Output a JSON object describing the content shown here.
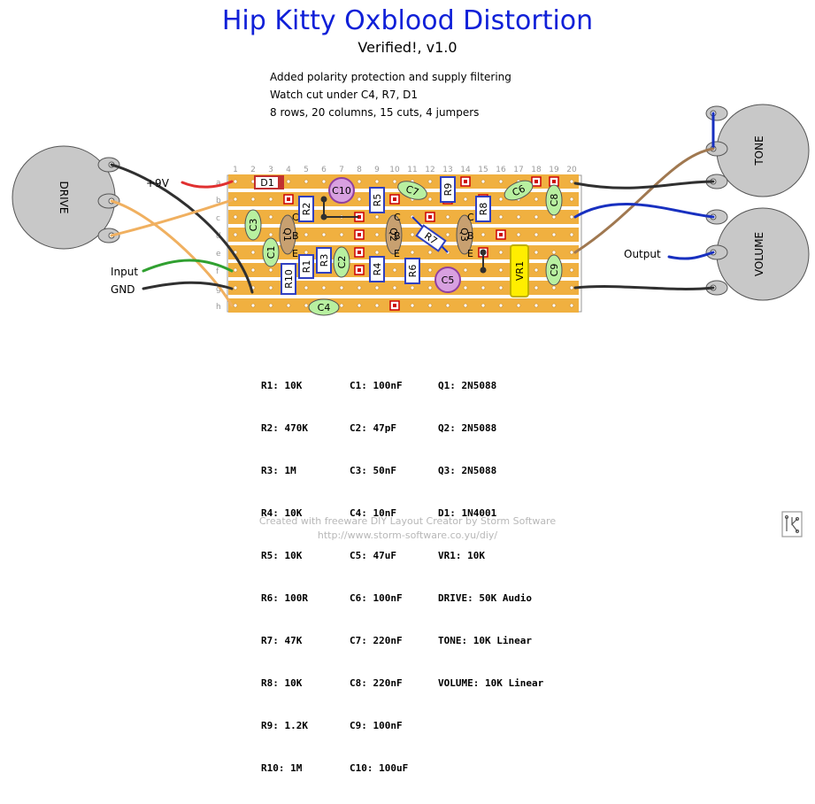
{
  "title": "Hip Kitty Oxblood Distortion",
  "subtitle": "Verified!, v1.0",
  "notes": [
    "Added polarity protection and supply filtering",
    "Watch cut under C4, R7, D1",
    "8 rows, 20 columns, 15 cuts, 4 jumpers"
  ],
  "board": {
    "columns": [
      "1",
      "2",
      "3",
      "4",
      "5",
      "6",
      "7",
      "8",
      "9",
      "10",
      "11",
      "12",
      "13",
      "14",
      "15",
      "16",
      "17",
      "18",
      "19",
      "20"
    ],
    "rows": [
      "a",
      "b",
      "c",
      "d",
      "e",
      "f",
      "g",
      "h"
    ],
    "strip_color": "#f0b040",
    "cut_color": "#cc0000"
  },
  "wire_labels": {
    "power": "+9V",
    "input": "Input",
    "ground": "GND",
    "output": "Output"
  },
  "pots": {
    "drive": "DRIVE",
    "tone": "TONE",
    "volume": "VOLUME"
  },
  "components": {
    "R1": "R1",
    "R2": "R2",
    "R3": "R3",
    "R4": "R4",
    "R5": "R5",
    "R6": "R6",
    "R7": "R7",
    "R8": "R8",
    "R9": "R9",
    "R10": "R10",
    "C1": "C1",
    "C2": "C2",
    "C3": "C3",
    "C4": "C4",
    "C5": "C5",
    "C6": "C6",
    "C7": "C7",
    "C8": "C8",
    "C9": "C9",
    "C10": "C10",
    "Q1": "Q1",
    "Q2": "Q2",
    "Q3": "Q3",
    "D1": "D1",
    "VR1": "VR1",
    "pin_c": "C",
    "pin_b": "B",
    "pin_e": "E"
  },
  "parts_list": {
    "col1": [
      "R1: 10K",
      "R2: 470K",
      "R3: 1M",
      "R4: 10K",
      "R5: 10K",
      "R6: 100R",
      "R7: 47K",
      "R8: 10K",
      "R9: 1.2K",
      "R10: 1M"
    ],
    "col2": [
      "C1: 100nF",
      "C2: 47pF",
      "C3: 50nF",
      "C4: 10nF",
      "C5: 47uF",
      "C6: 100nF",
      "C7: 220nF",
      "C8: 220nF",
      "C9: 100nF",
      "C10: 100uF"
    ],
    "col3": [
      "Q1: 2N5088",
      "Q2: 2N5088",
      "Q3: 2N5088",
      "D1: 1N4001",
      "VR1: 10K",
      "DRIVE: 50K Audio",
      "TONE: 10K Linear",
      "VOLUME: 10K Linear"
    ]
  },
  "footer": {
    "line1": "Created with freeware DIY Layout Creator by Storm Software",
    "line2": "http://www.storm-software.co.yu/diy/"
  },
  "colors": {
    "title": "#1020d8",
    "resistor": "#3040c0",
    "cap_ceramic": "#b8f0a0",
    "cap_electrolytic": "#d8a0e0",
    "transistor": "#c8a070",
    "trimmer": "#ffee00",
    "pot": "#c8c8c8"
  }
}
